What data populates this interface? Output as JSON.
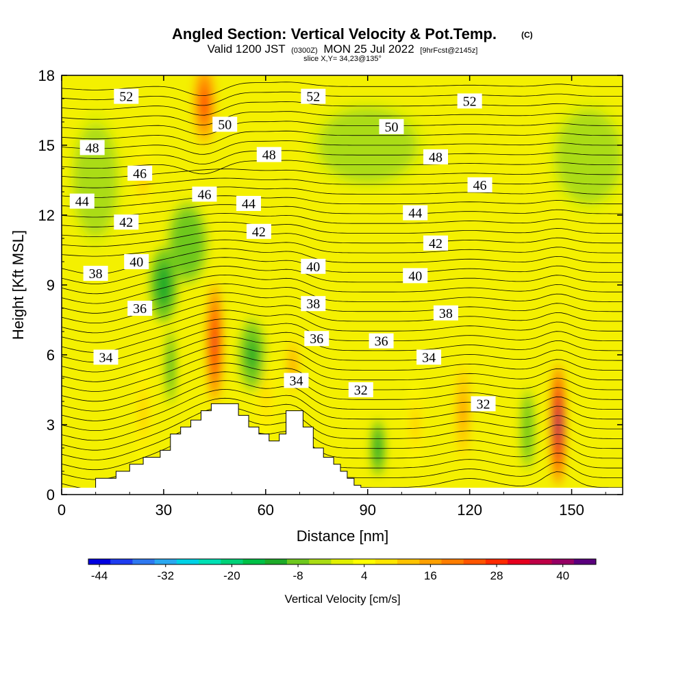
{
  "header": {
    "title_main": "Angled Section: Vertical Velocity & Pot.Temp.",
    "title_mark": "(C)",
    "valid_prefix": "Valid 1200 JST",
    "valid_zulu": "(0300Z)",
    "valid_date": "MON 25 Jul 2022",
    "valid_fcst": "[9hrFcst@2145z]",
    "slice": "slice X,Y= 34,23@135°"
  },
  "chart_data": {
    "type": "heatmap",
    "xlabel": "Distance [nm]",
    "ylabel": "Height [Kft MSL]",
    "xlim": [
      0,
      165
    ],
    "ylim": [
      0,
      18
    ],
    "x_ticks": [
      {
        "value": 0,
        "label": "0"
      },
      {
        "value": 30,
        "label": "30"
      },
      {
        "value": 60,
        "label": "60"
      },
      {
        "value": 90,
        "label": "90"
      },
      {
        "value": 120,
        "label": "120"
      },
      {
        "value": 150,
        "label": "150"
      }
    ],
    "y_ticks": [
      {
        "value": 0,
        "label": "0"
      },
      {
        "value": 3,
        "label": "3"
      },
      {
        "value": 6,
        "label": "6"
      },
      {
        "value": 9,
        "label": "9"
      },
      {
        "value": 12,
        "label": "12"
      },
      {
        "value": 15,
        "label": "15"
      },
      {
        "value": 18,
        "label": "18"
      }
    ],
    "terrain": [
      [
        0,
        0
      ],
      [
        10,
        0
      ],
      [
        10,
        0.7
      ],
      [
        16,
        0.7
      ],
      [
        16,
        1.0
      ],
      [
        20,
        1.0
      ],
      [
        20,
        1.3
      ],
      [
        24,
        1.3
      ],
      [
        24,
        1.6
      ],
      [
        29,
        1.6
      ],
      [
        29,
        1.9
      ],
      [
        32,
        1.9
      ],
      [
        32,
        2.6
      ],
      [
        35,
        2.6
      ],
      [
        35,
        2.9
      ],
      [
        38,
        2.9
      ],
      [
        38,
        3.2
      ],
      [
        41,
        3.2
      ],
      [
        41,
        3.6
      ],
      [
        44,
        3.6
      ],
      [
        44,
        3.9
      ],
      [
        52,
        3.9
      ],
      [
        52,
        3.4
      ],
      [
        55,
        3.4
      ],
      [
        55,
        2.9
      ],
      [
        58,
        2.9
      ],
      [
        58,
        2.6
      ],
      [
        61,
        2.6
      ],
      [
        61,
        2.3
      ],
      [
        64,
        2.3
      ],
      [
        64,
        2.6
      ],
      [
        66,
        2.6
      ],
      [
        66,
        3.6
      ],
      [
        71,
        3.6
      ],
      [
        71,
        2.9
      ],
      [
        74,
        2.9
      ],
      [
        74,
        2.0
      ],
      [
        77,
        2.0
      ],
      [
        77,
        1.6
      ],
      [
        80,
        1.6
      ],
      [
        80,
        1.3
      ],
      [
        82,
        1.3
      ],
      [
        82,
        1.0
      ],
      [
        84,
        1.0
      ],
      [
        84,
        0.7
      ],
      [
        86,
        0.7
      ],
      [
        86,
        0.4
      ],
      [
        88,
        0.4
      ],
      [
        88,
        0
      ],
      [
        165,
        0
      ]
    ],
    "vertical_velocity_cells": [
      {
        "x": 45,
        "y": 6.5,
        "rx": 2.2,
        "ry": 2.6,
        "value": 30
      },
      {
        "x": 146,
        "y": 3.0,
        "rx": 2.0,
        "ry": 2.6,
        "value": 42
      },
      {
        "x": 42,
        "y": 16.8,
        "rx": 3.2,
        "ry": 1.8,
        "value": 28
      },
      {
        "x": 68,
        "y": 5.5,
        "rx": 1.5,
        "ry": 1.3,
        "value": 20
      },
      {
        "x": 118,
        "y": 3.6,
        "rx": 2.2,
        "ry": 2.2,
        "value": 18
      },
      {
        "x": 24,
        "y": 3.5,
        "rx": 2.0,
        "ry": 2.2,
        "value": 12
      },
      {
        "x": 60,
        "y": 4.2,
        "rx": 2.5,
        "ry": 1.8,
        "value": 10
      },
      {
        "x": 104,
        "y": 3.0,
        "rx": 2.0,
        "ry": 1.8,
        "value": 12
      },
      {
        "x": 24,
        "y": 13.5,
        "rx": 2.5,
        "ry": 1.5,
        "value": 12
      },
      {
        "x": 37,
        "y": 10.8,
        "rx": 6.0,
        "ry": 1.8,
        "value": -10
      },
      {
        "x": 30,
        "y": 9.0,
        "rx": 4.0,
        "ry": 1.6,
        "value": -14
      },
      {
        "x": 32,
        "y": 5.5,
        "rx": 1.2,
        "ry": 1.6,
        "value": -14
      },
      {
        "x": 56,
        "y": 6.0,
        "rx": 4.0,
        "ry": 1.6,
        "value": -12
      },
      {
        "x": 93,
        "y": 2.0,
        "rx": 2.0,
        "ry": 1.2,
        "value": -14
      },
      {
        "x": 137,
        "y": 2.8,
        "rx": 2.0,
        "ry": 1.8,
        "value": -10
      },
      {
        "x": 155,
        "y": 14.5,
        "rx": 12.0,
        "ry": 2.5,
        "value": -4
      },
      {
        "x": 90,
        "y": 15.0,
        "rx": 18.0,
        "ry": 2.0,
        "value": -4
      },
      {
        "x": 10,
        "y": 13.5,
        "rx": 8.0,
        "ry": 3.0,
        "value": -4
      }
    ],
    "pot_temp_labels": [
      {
        "text": "52",
        "x": 19,
        "y": 17.1
      },
      {
        "text": "52",
        "x": 74,
        "y": 17.1
      },
      {
        "text": "52",
        "x": 120,
        "y": 16.9
      },
      {
        "text": "50",
        "x": 48,
        "y": 15.9
      },
      {
        "text": "50",
        "x": 97,
        "y": 15.8
      },
      {
        "text": "48",
        "x": 9,
        "y": 14.9
      },
      {
        "text": "48",
        "x": 61,
        "y": 14.6
      },
      {
        "text": "48",
        "x": 110,
        "y": 14.5
      },
      {
        "text": "46",
        "x": 23,
        "y": 13.8
      },
      {
        "text": "46",
        "x": 42,
        "y": 12.9
      },
      {
        "text": "46",
        "x": 123,
        "y": 13.3
      },
      {
        "text": "44",
        "x": 6,
        "y": 12.6
      },
      {
        "text": "44",
        "x": 55,
        "y": 12.5
      },
      {
        "text": "44",
        "x": 104,
        "y": 12.1
      },
      {
        "text": "42",
        "x": 19,
        "y": 11.7
      },
      {
        "text": "42",
        "x": 58,
        "y": 11.3
      },
      {
        "text": "42",
        "x": 110,
        "y": 10.8
      },
      {
        "text": "40",
        "x": 22,
        "y": 10.0
      },
      {
        "text": "40",
        "x": 74,
        "y": 9.8
      },
      {
        "text": "40",
        "x": 104,
        "y": 9.4
      },
      {
        "text": "38",
        "x": 10,
        "y": 9.5
      },
      {
        "text": "38",
        "x": 74,
        "y": 8.2
      },
      {
        "text": "38",
        "x": 113,
        "y": 7.8
      },
      {
        "text": "36",
        "x": 23,
        "y": 8.0
      },
      {
        "text": "36",
        "x": 75,
        "y": 6.7
      },
      {
        "text": "36",
        "x": 94,
        "y": 6.6
      },
      {
        "text": "34",
        "x": 13,
        "y": 5.9
      },
      {
        "text": "34",
        "x": 108,
        "y": 5.9
      },
      {
        "text": "34",
        "x": 69,
        "y": 4.9
      },
      {
        "text": "32",
        "x": 88,
        "y": 4.5
      },
      {
        "text": "32",
        "x": 124,
        "y": 3.9
      }
    ],
    "colorbar": {
      "title": "Vertical Velocity [cm/s]",
      "min": -46,
      "max": 46,
      "step": 4,
      "labels": [
        "-44",
        "-32",
        "-20",
        "-8",
        "4",
        "16",
        "28",
        "40"
      ],
      "colors": [
        "#0000e0",
        "#1e3cf0",
        "#2e78f0",
        "#2aa8f0",
        "#00d2e6",
        "#00e0b4",
        "#00d278",
        "#00c046",
        "#1eaa28",
        "#6ec81e",
        "#aadc14",
        "#e1f000",
        "#ffff00",
        "#ffe600",
        "#ffc300",
        "#ffa000",
        "#ff7d00",
        "#ff5500",
        "#ff2a00",
        "#e6001e",
        "#be0046",
        "#960064",
        "#5a007d"
      ]
    }
  }
}
